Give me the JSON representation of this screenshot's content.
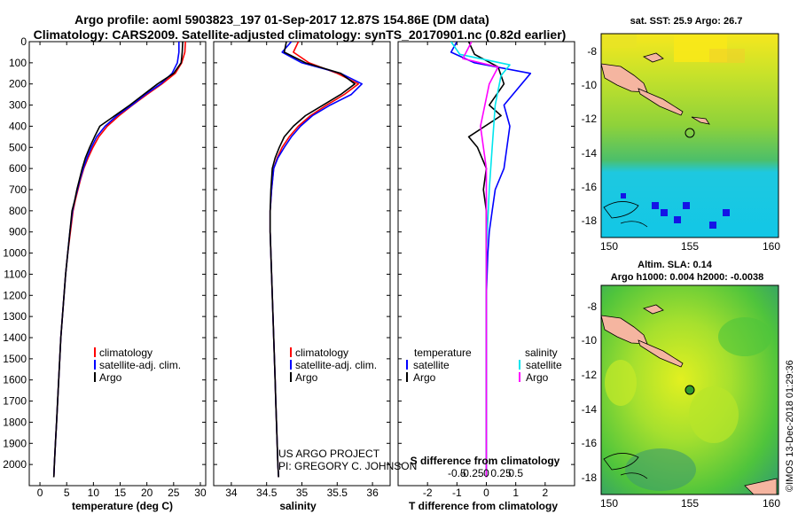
{
  "title": {
    "line1": "Argo profile: aoml 5903823_197 01-Sep-2017 12.87S 154.86E (DM data)",
    "line2": "Climatology: CARS2009. Satellite-adjusted climatology: synTS_20170901.nc (0.82d earlier)"
  },
  "chart_data": [
    {
      "id": "temperature",
      "type": "line",
      "xlabel": "temperature (deg C)",
      "ylabel": "",
      "xlim": [
        -2,
        31
      ],
      "ylim": [
        2100,
        0
      ],
      "xticks": [
        0,
        5,
        10,
        15,
        20,
        25,
        30
      ],
      "yticks": [
        0,
        100,
        200,
        300,
        400,
        500,
        600,
        700,
        800,
        900,
        1000,
        1100,
        1200,
        1300,
        1400,
        1500,
        1600,
        1700,
        1800,
        1900,
        2000
      ],
      "legend": [
        "climatology",
        "satellite-adj. clim.",
        "Argo"
      ],
      "series": [
        {
          "name": "climatology",
          "color": "#ff0000",
          "points": [
            [
              27.2,
              0
            ],
            [
              27.1,
              50
            ],
            [
              26.5,
              100
            ],
            [
              25.3,
              150
            ],
            [
              22.8,
              200
            ],
            [
              20.0,
              250
            ],
            [
              17.3,
              300
            ],
            [
              14.8,
              350
            ],
            [
              12.6,
              400
            ],
            [
              11.0,
              450
            ],
            [
              9.9,
              500
            ],
            [
              9.0,
              550
            ],
            [
              8.2,
              600
            ],
            [
              7.6,
              650
            ],
            [
              7.1,
              700
            ],
            [
              6.6,
              750
            ],
            [
              6.2,
              800
            ],
            [
              5.7,
              900
            ],
            [
              5.2,
              1000
            ],
            [
              4.8,
              1100
            ],
            [
              4.5,
              1200
            ],
            [
              4.2,
              1300
            ],
            [
              3.9,
              1400
            ],
            [
              3.7,
              1500
            ],
            [
              3.5,
              1600
            ],
            [
              3.3,
              1700
            ],
            [
              3.1,
              1800
            ],
            [
              2.9,
              1900
            ],
            [
              2.7,
              2000
            ],
            [
              2.6,
              2060
            ]
          ]
        },
        {
          "name": "satellite-adj. clim.",
          "color": "#0000ff",
          "points": [
            [
              26.0,
              0
            ],
            [
              26.0,
              50
            ],
            [
              25.7,
              100
            ],
            [
              24.7,
              150
            ],
            [
              22.6,
              200
            ],
            [
              19.7,
              250
            ],
            [
              17.2,
              300
            ],
            [
              14.4,
              350
            ],
            [
              12.2,
              400
            ],
            [
              10.6,
              450
            ],
            [
              9.6,
              500
            ],
            [
              8.8,
              550
            ],
            [
              8.1,
              600
            ],
            [
              7.5,
              650
            ],
            [
              7.0,
              700
            ],
            [
              6.5,
              750
            ],
            [
              6.1,
              800
            ],
            [
              5.6,
              900
            ],
            [
              5.2,
              1000
            ],
            [
              4.8,
              1100
            ],
            [
              4.5,
              1200
            ],
            [
              4.2,
              1300
            ],
            [
              3.9,
              1400
            ],
            [
              3.7,
              1500
            ],
            [
              3.5,
              1600
            ],
            [
              3.3,
              1700
            ],
            [
              3.1,
              1800
            ],
            [
              2.9,
              1900
            ],
            [
              2.7,
              2000
            ],
            [
              2.6,
              2060
            ]
          ]
        },
        {
          "name": "Argo",
          "color": "#000000",
          "points": [
            [
              26.7,
              0
            ],
            [
              26.6,
              50
            ],
            [
              26.4,
              100
            ],
            [
              25.0,
              150
            ],
            [
              22.0,
              200
            ],
            [
              19.4,
              250
            ],
            [
              16.8,
              300
            ],
            [
              14.0,
              350
            ],
            [
              11.2,
              400
            ],
            [
              10.2,
              450
            ],
            [
              9.3,
              500
            ],
            [
              8.5,
              550
            ],
            [
              7.9,
              600
            ],
            [
              7.4,
              650
            ],
            [
              6.9,
              700
            ],
            [
              6.5,
              750
            ],
            [
              6.0,
              800
            ],
            [
              5.6,
              900
            ],
            [
              5.2,
              1000
            ],
            [
              4.8,
              1100
            ],
            [
              4.5,
              1200
            ],
            [
              4.2,
              1300
            ],
            [
              3.9,
              1400
            ],
            [
              3.7,
              1500
            ],
            [
              3.5,
              1600
            ],
            [
              3.3,
              1700
            ],
            [
              3.1,
              1800
            ],
            [
              2.9,
              1900
            ],
            [
              2.7,
              2000
            ],
            [
              2.6,
              2060
            ]
          ]
        }
      ]
    },
    {
      "id": "salinity",
      "type": "line",
      "xlabel": "salinity",
      "ylabel": "",
      "xlim": [
        33.75,
        36.25
      ],
      "ylim": [
        2100,
        0
      ],
      "xticks": [
        34,
        34.5,
        35,
        35.5,
        36
      ],
      "legend": [
        "climatology",
        "satellite-adj. clim.",
        "Argo"
      ],
      "series": [
        {
          "name": "climatology",
          "color": "#ff0000",
          "points": [
            [
              34.95,
              0
            ],
            [
              34.88,
              50
            ],
            [
              35.1,
              100
            ],
            [
              35.5,
              150
            ],
            [
              35.8,
              200
            ],
            [
              35.6,
              250
            ],
            [
              35.35,
              300
            ],
            [
              35.12,
              350
            ],
            [
              34.95,
              400
            ],
            [
              34.82,
              450
            ],
            [
              34.72,
              500
            ],
            [
              34.65,
              550
            ],
            [
              34.6,
              600
            ],
            [
              34.57,
              700
            ],
            [
              34.55,
              800
            ],
            [
              34.55,
              900
            ],
            [
              34.56,
              1000
            ],
            [
              34.57,
              1100
            ],
            [
              34.58,
              1200
            ],
            [
              34.59,
              1300
            ],
            [
              34.6,
              1400
            ],
            [
              34.61,
              1500
            ],
            [
              34.62,
              1600
            ],
            [
              34.63,
              1700
            ],
            [
              34.64,
              1800
            ],
            [
              34.65,
              1900
            ],
            [
              34.66,
              2000
            ],
            [
              34.67,
              2060
            ]
          ]
        },
        {
          "name": "satellite-adj. clim.",
          "color": "#0000ff",
          "points": [
            [
              34.85,
              0
            ],
            [
              34.72,
              50
            ],
            [
              35.0,
              100
            ],
            [
              35.55,
              150
            ],
            [
              35.85,
              200
            ],
            [
              35.7,
              250
            ],
            [
              35.4,
              300
            ],
            [
              35.15,
              350
            ],
            [
              34.98,
              400
            ],
            [
              34.85,
              450
            ],
            [
              34.75,
              500
            ],
            [
              34.66,
              550
            ],
            [
              34.6,
              600
            ],
            [
              34.57,
              700
            ],
            [
              34.55,
              800
            ],
            [
              34.55,
              900
            ],
            [
              34.56,
              1000
            ],
            [
              34.57,
              1100
            ],
            [
              34.58,
              1200
            ],
            [
              34.59,
              1300
            ],
            [
              34.6,
              1400
            ],
            [
              34.61,
              1500
            ],
            [
              34.62,
              1600
            ],
            [
              34.63,
              1700
            ],
            [
              34.64,
              1800
            ],
            [
              34.65,
              1900
            ],
            [
              34.66,
              2000
            ],
            [
              34.67,
              2060
            ]
          ]
        },
        {
          "name": "Argo",
          "color": "#000000",
          "points": [
            [
              34.78,
              0
            ],
            [
              34.75,
              50
            ],
            [
              35.05,
              100
            ],
            [
              35.55,
              150
            ],
            [
              35.75,
              200
            ],
            [
              35.55,
              250
            ],
            [
              35.3,
              300
            ],
            [
              35.05,
              350
            ],
            [
              34.88,
              400
            ],
            [
              34.75,
              450
            ],
            [
              34.68,
              500
            ],
            [
              34.62,
              550
            ],
            [
              34.58,
              600
            ],
            [
              34.56,
              700
            ],
            [
              34.55,
              800
            ],
            [
              34.55,
              900
            ],
            [
              34.56,
              1000
            ],
            [
              34.57,
              1100
            ],
            [
              34.58,
              1200
            ],
            [
              34.59,
              1300
            ],
            [
              34.6,
              1400
            ],
            [
              34.61,
              1500
            ],
            [
              34.62,
              1600
            ],
            [
              34.63,
              1700
            ],
            [
              34.64,
              1800
            ],
            [
              34.65,
              1900
            ],
            [
              34.66,
              2000
            ],
            [
              34.67,
              2060
            ]
          ]
        }
      ]
    },
    {
      "id": "difference",
      "type": "line",
      "xlabel": "T difference from climatology",
      "top_label": "S difference from climatology",
      "xlim": [
        -3,
        3
      ],
      "ylim": [
        2100,
        0
      ],
      "xticks": [
        -2,
        -1,
        0,
        1,
        2
      ],
      "xtick_labels": [
        "-2",
        "-1",
        "0",
        "1",
        "2"
      ],
      "s_ticks": [
        -0.5,
        -0.25,
        0,
        0.25,
        0.5
      ],
      "s_tick_labels": [
        "-0.5",
        "-0.25",
        "0",
        "0.25",
        "0.5"
      ],
      "legend_headers": [
        "temperature",
        "salinity"
      ],
      "legend": [
        "satellite",
        "Argo",
        "satellite",
        "Argo"
      ],
      "series": [
        {
          "name": "T satellite",
          "color": "#0000ff",
          "points": [
            [
              -1.0,
              0
            ],
            [
              -1.2,
              50
            ],
            [
              -0.4,
              100
            ],
            [
              1.5,
              150
            ],
            [
              0.9,
              250
            ],
            [
              0.6,
              300
            ],
            [
              0.8,
              400
            ],
            [
              0.7,
              500
            ],
            [
              0.6,
              600
            ],
            [
              0.3,
              700
            ],
            [
              0.2,
              800
            ],
            [
              0.1,
              900
            ],
            [
              0.05,
              1000
            ],
            [
              0.0,
              1200
            ],
            [
              0.0,
              1500
            ],
            [
              0.0,
              1800
            ],
            [
              0.0,
              2060
            ]
          ]
        },
        {
          "name": "T Argo",
          "color": "#000000",
          "points": [
            [
              -0.6,
              0
            ],
            [
              -0.4,
              60
            ],
            [
              0.4,
              120
            ],
            [
              0.6,
              200
            ],
            [
              0.1,
              300
            ],
            [
              0.5,
              350
            ],
            [
              -0.6,
              450
            ],
            [
              -0.3,
              500
            ],
            [
              0.0,
              600
            ],
            [
              -0.1,
              700
            ],
            [
              0.0,
              800
            ],
            [
              0.0,
              1000
            ],
            [
              0.0,
              1500
            ],
            [
              0.0,
              2060
            ]
          ]
        },
        {
          "name": "S satellite",
          "color": "#00e5ee",
          "points": [
            [
              -1.2,
              0
            ],
            [
              -0.9,
              60
            ],
            [
              0.8,
              110
            ],
            [
              0.5,
              160
            ],
            [
              0.3,
              300
            ],
            [
              0.2,
              500
            ],
            [
              0.1,
              700
            ],
            [
              0.0,
              1000
            ],
            [
              0.0,
              1500
            ],
            [
              0.0,
              2060
            ]
          ]
        },
        {
          "name": "S Argo",
          "color": "#ff00ff",
          "points": [
            [
              -0.5,
              0
            ],
            [
              -0.8,
              80
            ],
            [
              0.4,
              120
            ],
            [
              0.1,
              200
            ],
            [
              -0.2,
              400
            ],
            [
              0.0,
              600
            ],
            [
              0.0,
              1000
            ],
            [
              0.0,
              1500
            ],
            [
              0.0,
              2060
            ]
          ]
        }
      ]
    }
  ],
  "footer": {
    "project": "US ARGO PROJECT",
    "pi": "PI: GREGORY C. JOHNSON"
  },
  "maps": {
    "sst": {
      "title": "sat. SST: 25.9 Argo: 26.7",
      "lon_range": [
        150,
        160
      ],
      "lat_range": [
        -18.6,
        -7.4
      ],
      "lon_ticks": [
        "150",
        "155",
        "160"
      ],
      "lat_ticks": [
        "-8",
        "-10",
        "-12",
        "-14",
        "-16",
        "-18"
      ],
      "float_position": {
        "lon": 154.86,
        "lat": -12.87
      }
    },
    "sla": {
      "title1": "Altim. SLA: 0.14",
      "title2": "Argo h1000: 0.004 h2000: -0.0038",
      "lon_range": [
        150,
        160
      ],
      "lat_range": [
        -18.6,
        -7.4
      ],
      "lon_ticks": [
        "150",
        "155",
        "160"
      ],
      "lat_ticks": [
        "-8",
        "-10",
        "-12",
        "-14",
        "-16",
        "-18"
      ],
      "float_position": {
        "lon": 154.86,
        "lat": -12.87
      }
    },
    "credit": "©IMOS 13-Dec-2018 01:29:36"
  }
}
